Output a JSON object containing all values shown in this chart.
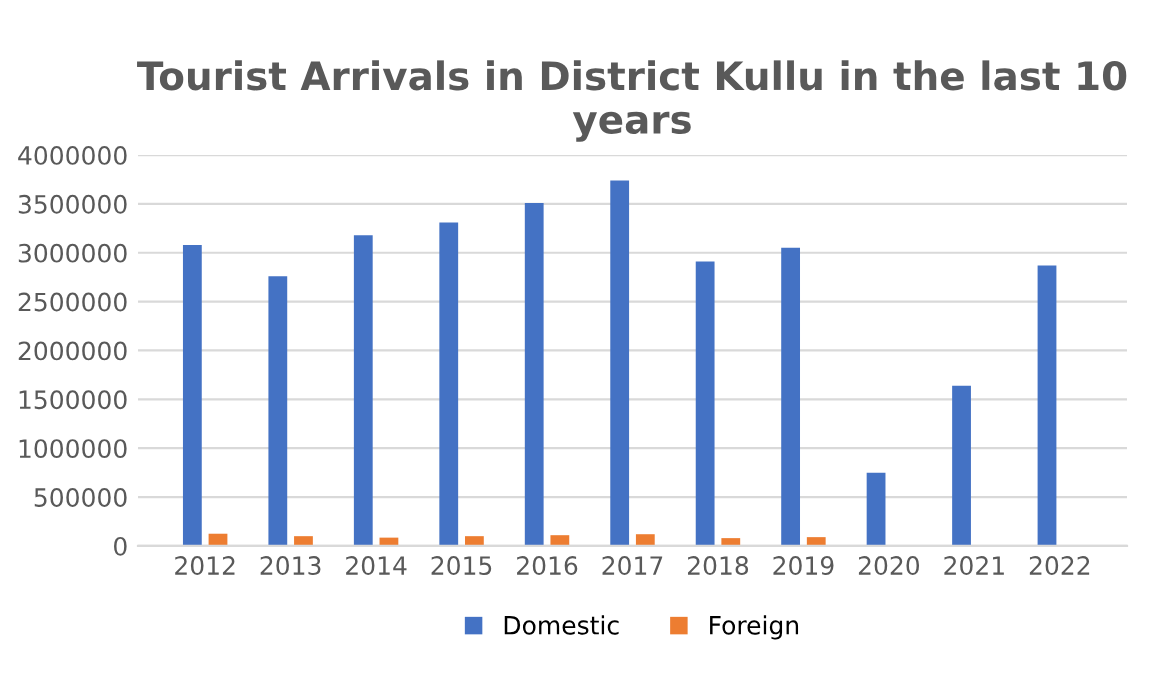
{
  "chart_data": {
    "type": "bar",
    "title": "Tourist Arrivals in District Kullu in the last 10 years",
    "categories": [
      "2012",
      "2013",
      "2014",
      "2015",
      "2016",
      "2017",
      "2018",
      "2019",
      "2020",
      "2021",
      "2022"
    ],
    "series": [
      {
        "name": "Domestic",
        "color": "#4472c4",
        "values": [
          3080000,
          2760000,
          3180000,
          3310000,
          3510000,
          3740000,
          2910000,
          3050000,
          750000,
          1640000,
          2870000
        ]
      },
      {
        "name": "Foreign",
        "color": "#ed7d31",
        "values": [
          125000,
          100000,
          85000,
          100000,
          110000,
          120000,
          80000,
          90000,
          3000,
          5000,
          5000
        ]
      }
    ],
    "ylim": [
      0,
      4000000
    ],
    "yticks": [
      0,
      500000,
      1000000,
      1500000,
      2000000,
      2500000,
      3000000,
      3500000,
      4000000
    ],
    "grid": "y",
    "legend": "bottom"
  }
}
